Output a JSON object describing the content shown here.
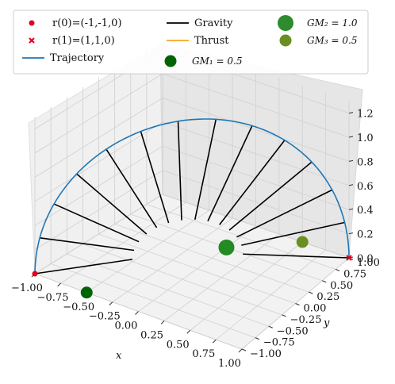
{
  "chart_data": {
    "type": "3d-line",
    "title": "",
    "xlabel": "x",
    "ylabel": "y",
    "zlabel": "",
    "xlim": [
      -1.0,
      1.0
    ],
    "ylim": [
      -1.0,
      1.0
    ],
    "zlim": [
      0.0,
      1.25
    ],
    "x_ticks": [
      "−1.00",
      "−0.75",
      "−0.50",
      "−0.25",
      "0.00",
      "0.25",
      "0.50",
      "0.75",
      "1.00"
    ],
    "y_ticks": [
      "−1.00",
      "−0.75",
      "−0.50",
      "−0.25",
      "0.00",
      "0.25",
      "0.50",
      "0.75",
      "1.00"
    ],
    "z_ticks": [
      "0.0",
      "0.2",
      "0.4",
      "0.6",
      "0.8",
      "1.0",
      "1.2"
    ],
    "grid": true,
    "legend_placement": "top",
    "legend": [
      {
        "label": "r(0)=(-1,-1,0)",
        "kind": "dot",
        "color": "#e0001b"
      },
      {
        "label": "Gravity",
        "kind": "line",
        "color": "#000000"
      },
      {
        "label": "GM₂ = 1.0",
        "kind": "bigdot",
        "color": "#2e8b2e"
      },
      {
        "label": "r(1)=(1,1,0)",
        "kind": "cross",
        "color": "#e0001b"
      },
      {
        "label": "Thrust",
        "kind": "line",
        "color": "#f5a623"
      },
      {
        "label": "GM₃ = 0.5",
        "kind": "dot2",
        "color": "#6b8e23"
      },
      {
        "label": "Trajectory",
        "kind": "line",
        "color": "#1f77b4"
      },
      {
        "label": "GM₁ = 0.5",
        "kind": "dot3",
        "color": "#006400"
      }
    ],
    "series": [
      {
        "name": "Trajectory",
        "color": "#1f77b4",
        "points": [
          [
            -1.0,
            -1.0,
            0.0
          ],
          [
            -0.866,
            -0.866,
            0.62
          ],
          [
            -0.5,
            -0.5,
            1.07
          ],
          [
            0.0,
            0.0,
            1.24
          ],
          [
            0.5,
            0.5,
            1.07
          ],
          [
            0.866,
            0.866,
            0.62
          ],
          [
            1.0,
            1.0,
            0.0
          ]
        ]
      }
    ],
    "start_point": {
      "name": "r(0)=(-1,-1,0)",
      "x": -1,
      "y": -1,
      "z": 0,
      "color": "#e0001b"
    },
    "end_point": {
      "name": "r(1)=(1,1,0)",
      "x": 1,
      "y": 1,
      "z": 0,
      "color": "#e0001b"
    },
    "bodies": [
      {
        "name": "GM₁ = 0.5",
        "x": -0.5,
        "y": -1.0,
        "z": 0.0,
        "color": "#006400"
      },
      {
        "name": "GM₂ = 1.0",
        "x": 0.0,
        "y": 0.5,
        "z": 0.0,
        "color": "#228b22"
      },
      {
        "name": "GM₃ = 0.5",
        "x": 0.5,
        "y": 1.0,
        "z": 0.0,
        "color": "#6b8e23"
      }
    ],
    "gravity_vectors_count": 14
  }
}
